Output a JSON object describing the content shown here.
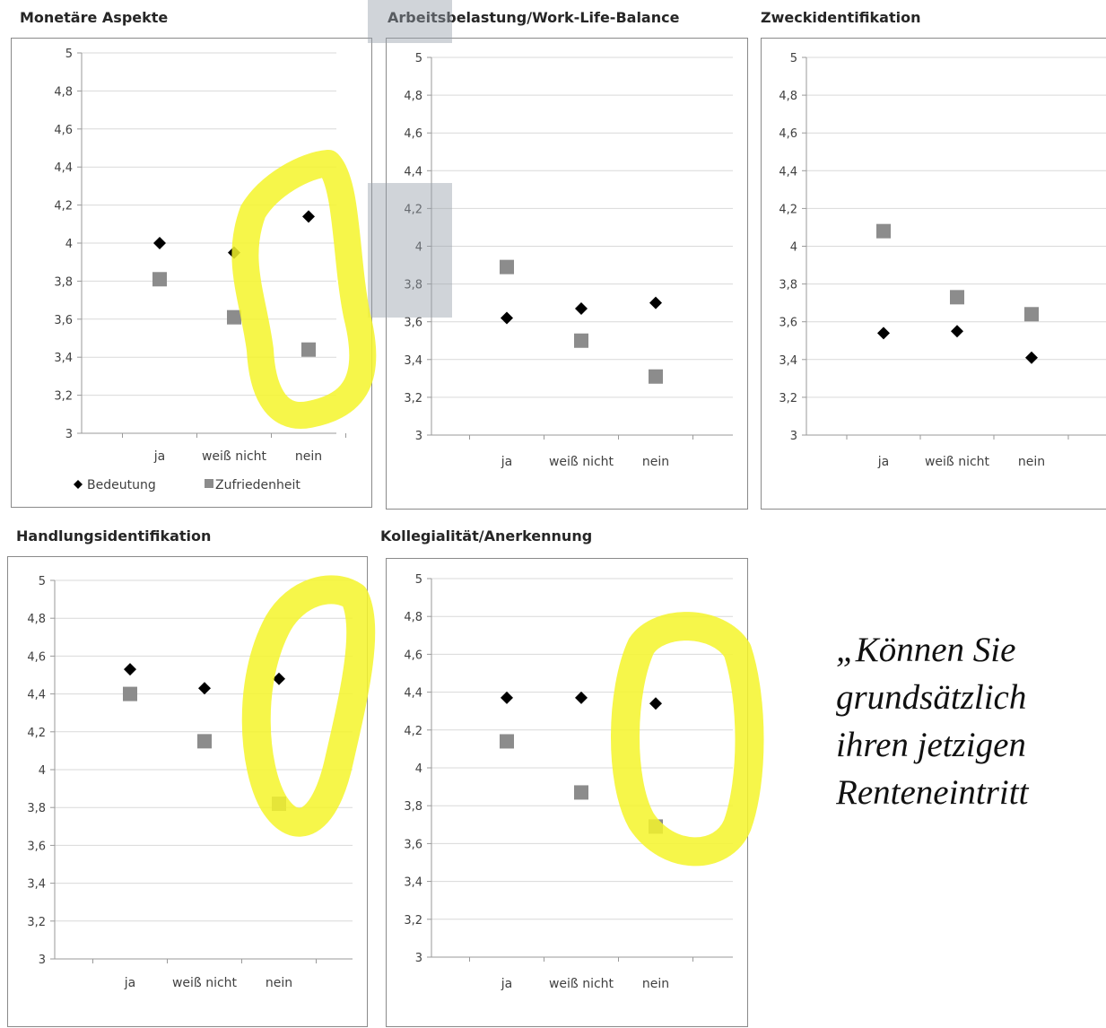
{
  "caption": {
    "lines": [
      "„Können Sie",
      "grundsätzlich",
      "ihren jetzigen",
      "Renteneintritt"
    ]
  },
  "colors": {
    "bedeutung": "#000000",
    "zufriedenheit": "#8c8c8c",
    "highlight": "#f5f52a",
    "grid": "#d9d9d9"
  },
  "chart_data": [
    {
      "type": "scatter",
      "title": "Monetäre Aspekte",
      "categories": [
        "ja",
        "weiß nicht",
        "nein"
      ],
      "ylim": [
        3,
        5
      ],
      "yticks": [
        "5",
        "4,8",
        "4,6",
        "4,4",
        "4,2",
        "4",
        "3,8",
        "3,6",
        "3,4",
        "3,2",
        "3"
      ],
      "grid": true,
      "legend_position": "bottom",
      "series": [
        {
          "name": "Bedeutung",
          "marker": "diamond",
          "values": [
            4.0,
            3.95,
            4.14
          ]
        },
        {
          "name": "Zufriedenheit",
          "marker": "square",
          "values": [
            3.81,
            3.61,
            3.44
          ]
        }
      ]
    },
    {
      "type": "scatter",
      "title": "Arbeitsbelastung/Work-Life-Balance",
      "categories": [
        "ja",
        "weiß nicht",
        "nein"
      ],
      "ylim": [
        3,
        5
      ],
      "yticks": [
        "5",
        "4,8",
        "4,6",
        "4,4",
        "4,2",
        "4",
        "3,8",
        "3,6",
        "3,4",
        "3,2",
        "3"
      ],
      "grid": true,
      "series": [
        {
          "marker": "diamond",
          "values": [
            3.62,
            3.67,
            3.7
          ]
        },
        {
          "marker": "square",
          "values": [
            3.89,
            3.5,
            3.31
          ]
        }
      ]
    },
    {
      "type": "scatter",
      "title": "Zweckidentifikation",
      "categories": [
        "ja",
        "weiß nicht",
        "nein"
      ],
      "ylim": [
        3,
        5
      ],
      "yticks": [
        "5",
        "4,8",
        "4,6",
        "4,4",
        "4,2",
        "4",
        "3,8",
        "3,6",
        "3,4",
        "3,2",
        "3"
      ],
      "grid": true,
      "series": [
        {
          "marker": "diamond",
          "values": [
            3.54,
            3.55,
            3.41
          ]
        },
        {
          "marker": "square",
          "values": [
            4.08,
            3.73,
            3.64
          ]
        }
      ]
    },
    {
      "type": "scatter",
      "title": "Handlungsidentifikation",
      "categories": [
        "ja",
        "weiß nicht",
        "nein"
      ],
      "ylim": [
        3,
        5
      ],
      "yticks": [
        "5",
        "4,8",
        "4,6",
        "4,4",
        "4,2",
        "4",
        "3,8",
        "3,6",
        "3,4",
        "3,2",
        "3"
      ],
      "grid": true,
      "series": [
        {
          "marker": "diamond",
          "values": [
            4.53,
            4.43,
            4.48
          ]
        },
        {
          "marker": "square",
          "values": [
            4.4,
            4.15,
            3.82
          ]
        }
      ]
    },
    {
      "type": "scatter",
      "title": "Kollegialität/Anerkennung",
      "categories": [
        "ja",
        "weiß nicht",
        "nein"
      ],
      "ylim": [
        3,
        5
      ],
      "yticks": [
        "5",
        "4,8",
        "4,6",
        "4,4",
        "4,2",
        "4",
        "3,8",
        "3,6",
        "3,4",
        "3,2",
        "3"
      ],
      "grid": true,
      "series": [
        {
          "marker": "diamond",
          "values": [
            4.37,
            4.37,
            4.34
          ]
        },
        {
          "marker": "square",
          "values": [
            4.14,
            3.87,
            3.69
          ]
        }
      ]
    }
  ]
}
